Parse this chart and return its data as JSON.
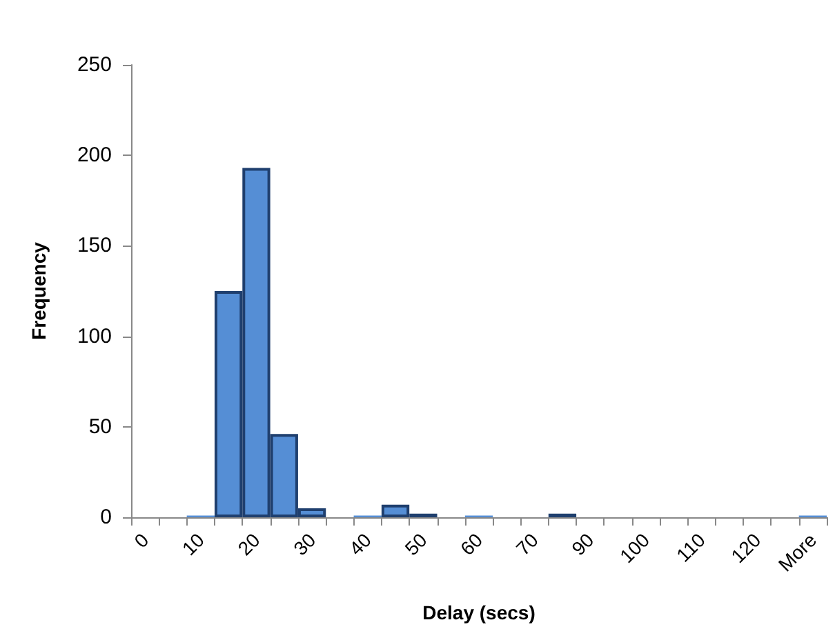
{
  "chart_data": {
    "type": "bar",
    "xlabel": "Delay (secs)",
    "ylabel": "Frequency",
    "categories": [
      "0",
      null,
      "10",
      null,
      "20",
      null,
      "30",
      null,
      "40",
      null,
      "50",
      null,
      "60",
      null,
      "70",
      null,
      "90",
      null,
      "100",
      null,
      "110",
      null,
      "120",
      null,
      "More"
    ],
    "values": [
      0,
      0,
      1,
      125,
      193,
      46,
      5,
      0,
      1,
      7,
      2,
      0,
      1,
      0,
      0,
      2,
      0,
      0,
      0,
      0,
      0,
      0,
      0,
      0,
      1
    ],
    "color": "#558ed5",
    "ylim": [
      0,
      250
    ],
    "yticks": [
      0,
      50,
      100,
      150,
      200,
      250
    ],
    "grid": false
  }
}
